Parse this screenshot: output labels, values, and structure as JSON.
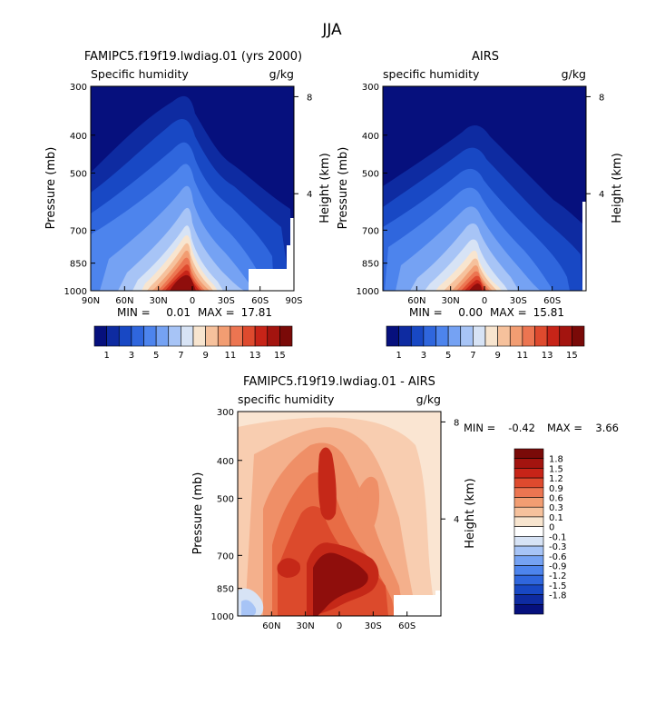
{
  "page_title": "JJA",
  "panels": {
    "model": {
      "title": "FAMIPC5.f19f19.lwdiag.01 (yrs 2000)",
      "variable": "Specific humidity",
      "units": "g/kg",
      "min_label": "MIN =",
      "min_value": "0.01",
      "max_label": "MAX =",
      "max_value": "17.81"
    },
    "obs": {
      "title": "AIRS",
      "variable": "specific humidity",
      "units": "g/kg",
      "min_label": "MIN =",
      "min_value": "0.00",
      "max_label": "MAX =",
      "max_value": "15.81"
    },
    "diff": {
      "title": "FAMIPC5.f19f19.lwdiag.01 - AIRS",
      "variable": "specific humidity",
      "units": "g/kg",
      "min_label": "MIN =",
      "min_value": "-0.42",
      "max_label": "MAX =",
      "max_value": "3.66"
    }
  },
  "axis_text": {
    "pressure_label": "Pressure (mb)",
    "height_label": "Height (km)"
  },
  "chart_data": [
    {
      "type": "heatmap",
      "panel": "model",
      "title": "FAMIPC5.f19f19.lwdiag.01 (yrs 2000)",
      "subtitle": "Specific humidity (g/kg)",
      "xlabel": "",
      "ylabel": "Pressure (mb)",
      "y2label": "Height (km)",
      "x_tick_labels": [
        "90N",
        "60N",
        "30N",
        "0",
        "30S",
        "60S",
        "90S"
      ],
      "y_tick_labels": [
        "300",
        "400",
        "500",
        "700",
        "850",
        "1000"
      ],
      "y2_tick_labels": [
        "8",
        "4"
      ],
      "colorbar_labels": [
        "1",
        "3",
        "5",
        "7",
        "9",
        "11",
        "13",
        "15"
      ],
      "min": 0.01,
      "max": 17.81
    },
    {
      "type": "heatmap",
      "panel": "obs",
      "title": "AIRS",
      "subtitle": "specific humidity (g/kg)",
      "xlabel": "",
      "ylabel": "Pressure (mb)",
      "y2label": "Height (km)",
      "x_tick_labels": [
        "60N",
        "30N",
        "0",
        "30S",
        "60S"
      ],
      "y_tick_labels": [
        "300",
        "400",
        "500",
        "700",
        "850",
        "1000"
      ],
      "y2_tick_labels": [
        "8",
        "4"
      ],
      "colorbar_labels": [
        "1",
        "3",
        "5",
        "7",
        "9",
        "11",
        "13",
        "15"
      ],
      "min": 0.0,
      "max": 15.81
    },
    {
      "type": "heatmap",
      "panel": "diff",
      "title": "FAMIPC5.f19f19.lwdiag.01 - AIRS",
      "subtitle": "specific humidity (g/kg)",
      "xlabel": "",
      "ylabel": "Pressure (mb)",
      "y2label": "Height (km)",
      "x_tick_labels": [
        "60N",
        "30N",
        "0",
        "30S",
        "60S"
      ],
      "y_tick_labels": [
        "300",
        "400",
        "500",
        "700",
        "850",
        "1000"
      ],
      "y2_tick_labels": [
        "8",
        "4"
      ],
      "colorbar_labels": [
        "1.8",
        "1.5",
        "1.2",
        "0.9",
        "0.6",
        "0.3",
        "0.1",
        "0",
        "-0.1",
        "-0.3",
        "-0.6",
        "-0.9",
        "-1.2",
        "-1.5",
        "-1.8"
      ],
      "min": -0.42,
      "max": 3.66
    }
  ]
}
